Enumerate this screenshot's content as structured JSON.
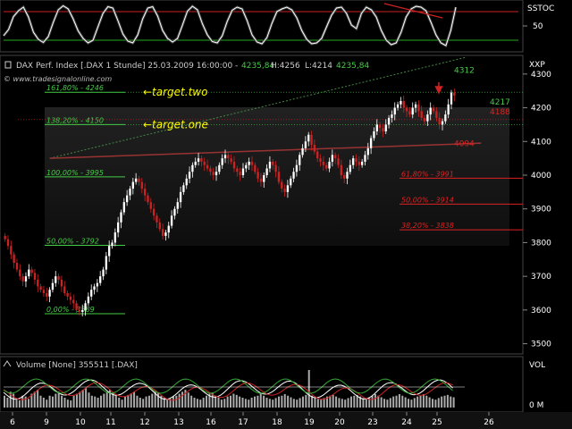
{
  "chart_data": [
    {
      "panel": "oscillator",
      "type": "line",
      "label": "SSTOC",
      "y_ticks": [
        50
      ],
      "ylim": [
        0,
        100
      ],
      "reference_lines": [
        {
          "value": 82,
          "color": "#cc2222"
        },
        {
          "value": 18,
          "color": "#22aa22"
        }
      ],
      "series": [
        {
          "color": "#ffffff",
          "values": [
            28,
            42,
            71,
            84,
            92,
            70,
            36,
            20,
            13,
            26,
            58,
            86,
            95,
            88,
            66,
            39,
            22,
            12,
            18,
            48,
            78,
            93,
            90,
            62,
            32,
            16,
            12,
            30,
            66,
            90,
            93,
            72,
            40,
            22,
            14,
            22,
            52,
            83,
            94,
            86,
            55,
            30,
            15,
            12,
            28,
            60,
            85,
            92,
            88,
            62,
            30,
            14,
            10,
            24,
            56,
            82,
            88,
            92,
            86,
            68,
            40,
            20,
            10,
            12,
            22,
            48,
            74,
            90,
            92,
            78,
            52,
            44,
            78,
            92,
            86,
            70,
            40,
            18,
            8,
            12,
            36,
            70,
            88,
            94,
            92,
            84,
            58,
            30,
            12,
            6,
            40,
            92
          ]
        }
      ]
    },
    {
      "panel": "price",
      "type": "candlestick",
      "title": "DAX Perf. Index [.DAX 1 Stunde] 25.03.2009 16:00:00 -",
      "header_values": [
        "4235,84",
        "H:4256",
        "L:4214",
        "4235,84"
      ],
      "watermark": "© www.tradesignalonline.com",
      "axis_label": "XXP",
      "ylim": [
        3475,
        4350
      ],
      "y_ticks": [
        3500,
        3600,
        3700,
        3800,
        3900,
        4000,
        4100,
        4200,
        4300
      ],
      "x_ticks": [
        "6",
        "9",
        "10",
        "11",
        "12",
        "13",
        "16",
        "17",
        "18",
        "19",
        "20",
        "23",
        "24",
        "25",
        "26"
      ],
      "closes": [
        3810,
        3790,
        3765,
        3740,
        3720,
        3700,
        3685,
        3700,
        3720,
        3710,
        3690,
        3670,
        3660,
        3650,
        3640,
        3660,
        3680,
        3700,
        3690,
        3670,
        3650,
        3640,
        3630,
        3620,
        3600,
        3595,
        3600,
        3620,
        3640,
        3660,
        3670,
        3680,
        3700,
        3720,
        3760,
        3790,
        3800,
        3830,
        3860,
        3890,
        3920,
        3940,
        3960,
        3980,
        3990,
        3980,
        3960,
        3940,
        3920,
        3900,
        3880,
        3860,
        3840,
        3820,
        3830,
        3850,
        3880,
        3900,
        3920,
        3950,
        3970,
        3990,
        4010,
        4030,
        4040,
        4050,
        4040,
        4030,
        4020,
        4010,
        4000,
        4010,
        4030,
        4050,
        4060,
        4050,
        4040,
        4020,
        4010,
        4000,
        4020,
        4030,
        4040,
        4030,
        4010,
        3990,
        3980,
        4000,
        4020,
        4040,
        4030,
        4010,
        3980,
        3960,
        3950,
        3970,
        3990,
        4010,
        4030,
        4060,
        4080,
        4100,
        4120,
        4090,
        4070,
        4050,
        4040,
        4030,
        4020,
        4040,
        4060,
        4050,
        4030,
        4000,
        3990,
        4010,
        4030,
        4050,
        4040,
        4030,
        4040,
        4060,
        4080,
        4110,
        4130,
        4150,
        4140,
        4130,
        4150,
        4170,
        4180,
        4200,
        4210,
        4220,
        4200,
        4190,
        4180,
        4200,
        4210,
        4190,
        4170,
        4160,
        4180,
        4200,
        4190,
        4170,
        4150,
        4160,
        4180,
        4210,
        4245,
        4236
      ],
      "fibonacci_levels": [
        {
          "label": "161,80% - 4246",
          "value": 4246,
          "color": "#44cc44"
        },
        {
          "label": "138,20% - 4150",
          "value": 4150,
          "color": "#44cc44"
        },
        {
          "label": "100,00% - 3995",
          "value": 3995,
          "color": "#44cc44"
        },
        {
          "label": "50,00% - 3792",
          "value": 3792,
          "color": "#44cc44"
        },
        {
          "label": "0,00% - 3589",
          "value": 3589,
          "color": "#44cc44"
        },
        {
          "label": "61,80% - 3991",
          "value": 3991,
          "color": "#dd2222"
        },
        {
          "label": "50,00% - 3914",
          "value": 3914,
          "color": "#dd2222"
        },
        {
          "label": "38,20% - 3838",
          "value": 3838,
          "color": "#dd2222"
        }
      ],
      "level_labels": [
        {
          "text": "4312",
          "value": 4312,
          "color": "#44cc44"
        },
        {
          "text": "4217",
          "value": 4217,
          "color": "#44cc44"
        },
        {
          "text": "4188",
          "value": 4188,
          "color": "#dd2222"
        },
        {
          "text": "4094",
          "value": 4094,
          "color": "#dd2222"
        }
      ],
      "annotations": [
        {
          "text": "←target.two",
          "value": 4246,
          "color": "#ffff00"
        },
        {
          "text": "←target.one",
          "value": 4150,
          "color": "#ffff00"
        }
      ],
      "trendlines": [
        {
          "color": "#448844",
          "points": [
            [
              15,
              4050
            ],
            [
              155,
              4350
            ]
          ],
          "style": "dotted"
        },
        {
          "color": "#993333",
          "points": [
            [
              15,
              4050
            ],
            [
              160,
              4095
            ]
          ],
          "style": "solid"
        }
      ],
      "colors": {
        "up": "#ffffff",
        "down": "#cc2222"
      }
    },
    {
      "panel": "volume",
      "type": "bar",
      "label": "Volume [None] 355511 [.DAX]",
      "axis_label": "VOL",
      "y_ticks": [
        "0 M"
      ],
      "values": [
        30,
        25,
        40,
        35,
        20,
        18,
        30,
        28,
        22,
        35,
        40,
        45,
        30,
        25,
        20,
        30,
        28,
        35,
        40,
        30,
        25,
        20,
        18,
        30,
        35,
        40,
        45,
        50,
        38,
        30,
        28,
        25,
        30,
        35,
        40,
        45,
        38,
        30,
        25,
        20,
        28,
        32,
        36,
        40,
        30,
        25,
        22,
        28,
        30,
        35,
        40,
        38,
        30,
        25,
        20,
        22,
        28,
        30,
        35,
        40,
        45,
        38,
        30,
        25,
        22,
        20,
        25,
        30,
        35,
        38,
        30,
        25,
        20,
        22,
        28,
        30,
        35,
        32,
        28,
        25,
        22,
        20,
        25,
        28,
        30,
        35,
        30,
        25,
        22,
        20,
        24,
        28,
        30,
        34,
        30,
        26,
        22,
        20,
        24,
        28,
        32,
        95,
        30,
        26,
        22,
        20,
        24,
        28,
        30,
        32,
        28,
        24,
        22,
        20,
        24,
        28,
        30,
        32,
        28,
        24,
        22,
        26,
        30,
        34,
        30,
        26,
        22,
        20,
        24,
        28,
        30,
        34,
        30,
        26,
        22,
        20,
        24,
        28,
        30,
        34,
        30,
        26,
        22,
        20,
        24,
        28,
        30,
        32,
        28,
        26
      ]
    }
  ]
}
